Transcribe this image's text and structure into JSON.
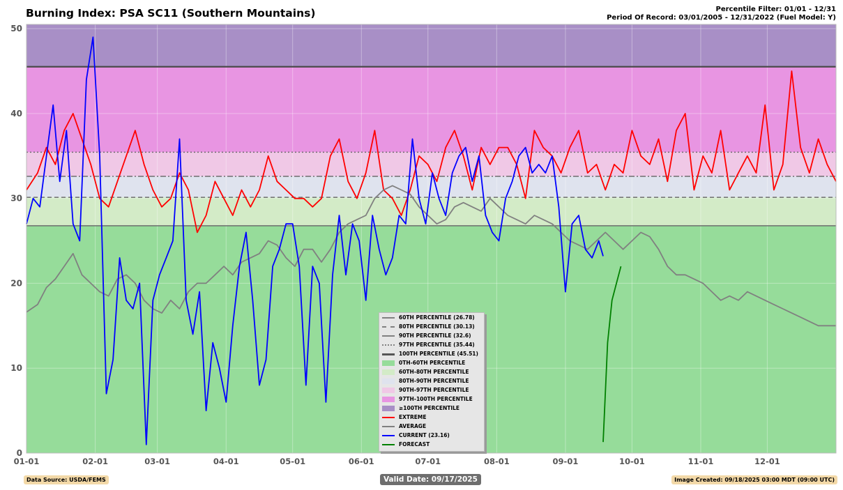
{
  "header": {
    "title": "Burning Index: PSA SC11 (Southern Mountains)",
    "percentile_filter": "Percentile Filter: 01/01 - 12/31",
    "period_of_record": "Period Of Record: 03/01/2005 - 12/31/2022 (Fuel Model: Y)"
  },
  "footer": {
    "data_source": "Data Source: USDA/FEMS",
    "valid_date": "Valid Date: 09/17/2025",
    "image_created": "Image Created: 09/18/2025 03:00 MDT (09:00 UTC)"
  },
  "colors": {
    "band_0_60": "#96dc9a",
    "band_60_80": "#d3ebc7",
    "band_80_90": "#dfe3ee",
    "band_90_97": "#f0c8e6",
    "band_97_100": "#e895e2",
    "band_100": "#a88fc6",
    "extreme": "#ff0000",
    "average": "#808080",
    "current": "#0000ff",
    "forecast": "#008000"
  },
  "legend": [
    {
      "label": "60TH PERCENTILE (26.78)",
      "kind": "line",
      "style": "solid",
      "color": "#808080"
    },
    {
      "label": "80TH PERCENTILE (30.13)",
      "kind": "line",
      "style": "dashed",
      "color": "#808080"
    },
    {
      "label": "90TH PERCENTILE (32.6)",
      "kind": "line",
      "style": "dashdot",
      "color": "#808080"
    },
    {
      "label": "97TH PERCENTILE (35.44)",
      "kind": "line",
      "style": "dotted",
      "color": "#808080"
    },
    {
      "label": "100TH PERCENTILE (45.51)",
      "kind": "line",
      "style": "solid-thick",
      "color": "#555555"
    },
    {
      "label": "0TH-60TH PERCENTILE",
      "kind": "patch",
      "color": "#96dc9a"
    },
    {
      "label": "60TH-80TH PERCENTILE",
      "kind": "patch",
      "color": "#d3ebc7"
    },
    {
      "label": "80TH-90TH PERCENTILE",
      "kind": "patch",
      "color": "#dfe3ee"
    },
    {
      "label": "90TH-97TH PERCENTILE",
      "kind": "patch",
      "color": "#f0c8e6"
    },
    {
      "label": "97TH-100TH PERCENTILE",
      "kind": "patch",
      "color": "#e895e2"
    },
    {
      "label": "≥100TH PERCENTILE",
      "kind": "patch",
      "color": "#a88fc6"
    },
    {
      "label": "EXTREME",
      "kind": "line",
      "style": "solid",
      "color": "#ff0000"
    },
    {
      "label": "AVERAGE",
      "kind": "line",
      "style": "solid",
      "color": "#808080"
    },
    {
      "label": "CURRENT (23.16)",
      "kind": "line",
      "style": "solid",
      "color": "#0000ff"
    },
    {
      "label": "FORECAST",
      "kind": "line",
      "style": "solid",
      "color": "#008000"
    }
  ],
  "chart_data": {
    "type": "line",
    "x_ticks": [
      "01-01",
      "02-01",
      "03-01",
      "04-01",
      "05-01",
      "06-01",
      "07-01",
      "08-01",
      "09-01",
      "10-01",
      "11-01",
      "12-01"
    ],
    "x_tick_days": [
      1,
      32,
      60,
      91,
      121,
      152,
      182,
      213,
      244,
      274,
      305,
      335
    ],
    "y_ticks": [
      0,
      10,
      20,
      30,
      40,
      50
    ],
    "ylim": [
      0,
      50.5
    ],
    "xlim": [
      1,
      366
    ],
    "grid": true,
    "legend_placement": "bottom-center",
    "percentiles": {
      "p60": 26.78,
      "p80": 30.13,
      "p90": 32.6,
      "p97": 35.44,
      "p100": 45.51
    },
    "series": [
      {
        "name": "EXTREME",
        "x": [
          1,
          6,
          10,
          14,
          18,
          22,
          26,
          30,
          34,
          38,
          42,
          46,
          50,
          54,
          58,
          62,
          66,
          70,
          74,
          78,
          82,
          86,
          90,
          94,
          98,
          102,
          106,
          110,
          114,
          118,
          122,
          126,
          130,
          134,
          138,
          142,
          146,
          150,
          154,
          158,
          162,
          166,
          170,
          174,
          178,
          182,
          186,
          190,
          194,
          198,
          202,
          206,
          210,
          214,
          218,
          222,
          226,
          230,
          234,
          238,
          242,
          246,
          250,
          254,
          258,
          262,
          266,
          270,
          274,
          278,
          282,
          286,
          290,
          294,
          298,
          302,
          306,
          310,
          314,
          318,
          322,
          326,
          330,
          334,
          338,
          342,
          346,
          350,
          354,
          358,
          362,
          366
        ],
        "y": [
          31,
          33,
          36,
          34,
          38,
          40,
          37,
          34,
          30,
          29,
          32,
          35,
          38,
          34,
          31,
          29,
          30,
          33,
          31,
          26,
          28,
          32,
          30,
          28,
          31,
          29,
          31,
          35,
          32,
          31,
          30,
          30,
          29,
          30,
          35,
          37,
          32,
          30,
          33,
          38,
          31,
          30,
          28,
          31,
          35,
          34,
          32,
          36,
          38,
          35,
          31,
          36,
          34,
          36,
          36,
          34,
          30,
          38,
          36,
          35,
          33,
          36,
          38,
          33,
          34,
          31,
          34,
          33,
          38,
          35,
          34,
          37,
          32,
          38,
          40,
          31,
          35,
          33,
          38,
          31,
          33,
          35,
          33,
          41,
          31,
          34,
          45,
          36,
          33,
          37,
          34,
          32
        ]
      },
      {
        "name": "AVERAGE",
        "x": [
          1,
          6,
          10,
          14,
          18,
          22,
          26,
          30,
          34,
          38,
          42,
          46,
          50,
          54,
          58,
          62,
          66,
          70,
          74,
          78,
          82,
          86,
          90,
          94,
          98,
          102,
          106,
          110,
          114,
          118,
          122,
          126,
          130,
          134,
          138,
          142,
          146,
          150,
          154,
          158,
          162,
          166,
          170,
          174,
          178,
          182,
          186,
          190,
          194,
          198,
          202,
          206,
          210,
          214,
          218,
          222,
          226,
          230,
          234,
          238,
          242,
          246,
          250,
          254,
          258,
          262,
          266,
          270,
          274,
          278,
          282,
          286,
          290,
          294,
          298,
          302,
          306,
          310,
          314,
          318,
          322,
          326,
          330,
          334,
          338,
          342,
          346,
          350,
          354,
          358,
          362,
          366
        ],
        "y": [
          16.6,
          17.5,
          19.5,
          20.5,
          22,
          23.5,
          21,
          20,
          19,
          18.5,
          20.5,
          21,
          20,
          18,
          17,
          16.5,
          18,
          17,
          19,
          20,
          20,
          21,
          22,
          21,
          22.5,
          23,
          23.5,
          25,
          24.5,
          23,
          22,
          24,
          24,
          22.5,
          24,
          26,
          27,
          27.5,
          28,
          30,
          31,
          31.5,
          31,
          30.5,
          29,
          28,
          27,
          27.5,
          29,
          29.5,
          29,
          28.5,
          30,
          29,
          28,
          27.5,
          27,
          28,
          27.5,
          27,
          26,
          25,
          24.5,
          24,
          25,
          26,
          25,
          24,
          25,
          26,
          25.5,
          24,
          22,
          21,
          21,
          20.5,
          20,
          19,
          18,
          18.5,
          18,
          19,
          18.5,
          18,
          17.5,
          17,
          16.5,
          16,
          15.5,
          15,
          15,
          15
        ]
      },
      {
        "name": "CURRENT (23.16)",
        "x": [
          1,
          4,
          7,
          10,
          13,
          16,
          19,
          22,
          25,
          28,
          31,
          34,
          37,
          40,
          43,
          46,
          49,
          52,
          55,
          58,
          61,
          64,
          67,
          70,
          73,
          76,
          79,
          82,
          85,
          88,
          91,
          94,
          97,
          100,
          103,
          106,
          109,
          112,
          115,
          118,
          121,
          124,
          127,
          130,
          133,
          136,
          139,
          142,
          145,
          148,
          151,
          154,
          157,
          160,
          163,
          166,
          169,
          172,
          175,
          178,
          181,
          184,
          187,
          190,
          193,
          196,
          199,
          202,
          205,
          208,
          211,
          214,
          217,
          220,
          223,
          226,
          229,
          232,
          235,
          238,
          241,
          244,
          247,
          250,
          253,
          256,
          259,
          261
        ],
        "y": [
          27,
          30,
          29,
          35,
          41,
          32,
          38,
          27,
          25,
          44,
          49,
          35,
          7,
          11,
          23,
          18,
          17,
          20,
          1,
          18,
          21,
          23,
          25,
          37,
          18,
          14,
          19,
          5,
          13,
          10,
          6,
          15,
          22,
          26,
          18,
          8,
          11,
          22,
          24,
          27,
          27,
          22,
          8,
          22,
          20,
          6,
          21,
          28,
          21,
          27,
          25,
          18,
          28,
          24,
          21,
          23,
          28,
          27,
          37,
          30,
          27,
          33,
          30,
          28,
          33,
          35,
          36,
          32,
          35,
          28,
          26,
          25,
          30,
          32,
          35,
          36,
          33,
          34,
          33,
          35,
          29,
          19,
          27,
          28,
          24,
          23,
          25,
          23.2
        ]
      },
      {
        "name": "FORECAST",
        "x": [
          261,
          263,
          265,
          267,
          269
        ],
        "y": [
          1.3,
          13,
          18,
          20,
          22
        ]
      }
    ]
  }
}
